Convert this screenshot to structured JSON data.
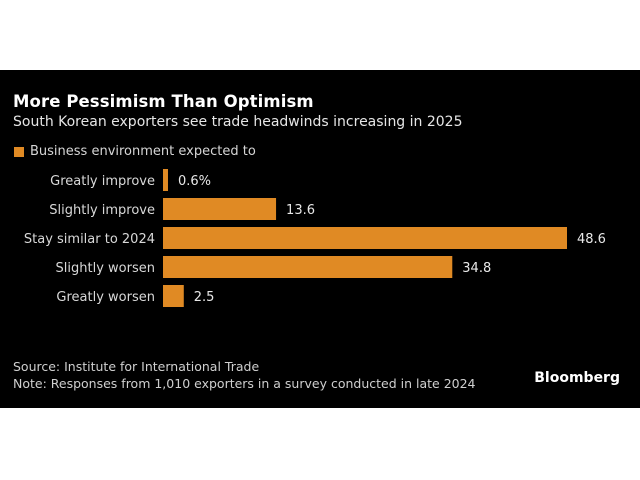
{
  "chart_data": {
    "type": "bar",
    "orientation": "horizontal",
    "title": "More Pessimism Than Optimism",
    "subtitle": "South Korean exporters see trade headwinds increasing in 2025",
    "legend": [
      {
        "label": "Business environment expected to",
        "color": "#e08a24"
      }
    ],
    "legend_position": "top-left",
    "categories": [
      "Greatly improve",
      "Slightly improve",
      "Stay similar to 2024",
      "Slightly worsen",
      "Greatly worsen"
    ],
    "values": [
      0.6,
      13.6,
      48.6,
      34.8,
      2.5
    ],
    "value_labels": [
      "0.6%",
      "13.6",
      "48.6",
      "34.8",
      "2.5"
    ],
    "unit": "%",
    "xlim": [
      0,
      48.6
    ],
    "grid": false,
    "xlabel": "",
    "ylabel": ""
  },
  "footer": {
    "source": "Source: Institute for International Trade",
    "note": "Note: Responses from 1,010 exporters in a survey conducted in late 2024",
    "brand": "Bloomberg"
  },
  "colors": {
    "background": "#000000",
    "bar": "#e08a24"
  }
}
